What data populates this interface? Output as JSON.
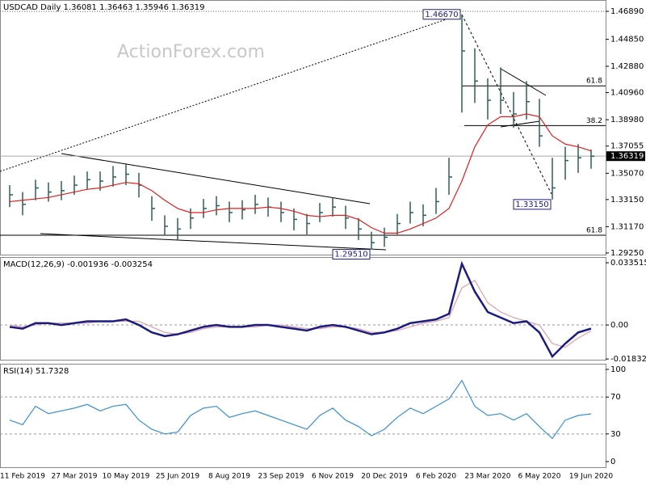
{
  "chart_data": [
    {
      "type": "ohlc",
      "title": "USDCAD Daily  1.36081  1.36463  1.35946  1.36319",
      "watermark": "ActionForex.com",
      "color": "#2d5e55",
      "high": [
        1.342,
        1.337,
        1.346,
        1.344,
        1.345,
        1.349,
        1.352,
        1.352,
        1.356,
        1.358,
        1.351,
        1.334,
        1.32,
        1.318,
        1.325,
        1.332,
        1.334,
        1.33,
        1.331,
        1.335,
        1.333,
        1.33,
        1.325,
        1.321,
        1.329,
        1.333,
        1.327,
        1.318,
        1.308,
        1.311,
        1.321,
        1.33,
        1.328,
        1.34,
        1.362,
        1.4667,
        1.442,
        1.42,
        1.428,
        1.41,
        1.418,
        1.405,
        1.362,
        1.37,
        1.372,
        1.368
      ],
      "low": [
        1.326,
        1.32,
        1.331,
        1.33,
        1.331,
        1.335,
        1.339,
        1.338,
        1.341,
        1.342,
        1.333,
        1.316,
        1.305,
        1.302,
        1.31,
        1.318,
        1.32,
        1.315,
        1.317,
        1.321,
        1.319,
        1.315,
        1.309,
        1.306,
        1.315,
        1.319,
        1.31,
        1.302,
        1.2951,
        1.297,
        1.306,
        1.314,
        1.312,
        1.321,
        1.335,
        1.395,
        1.402,
        1.39,
        1.394,
        1.384,
        1.39,
        1.37,
        1.3315,
        1.346,
        1.351,
        1.354
      ],
      "close": [
        1.335,
        1.328,
        1.34,
        1.337,
        1.338,
        1.342,
        1.346,
        1.345,
        1.348,
        1.35,
        1.342,
        1.325,
        1.312,
        1.31,
        1.318,
        1.325,
        1.327,
        1.322,
        1.324,
        1.328,
        1.326,
        1.322,
        1.317,
        1.314,
        1.322,
        1.326,
        1.318,
        1.31,
        1.3,
        1.304,
        1.314,
        1.322,
        1.32,
        1.33,
        1.348,
        1.44,
        1.418,
        1.404,
        1.404,
        1.394,
        1.403,
        1.378,
        1.34,
        1.36,
        1.362,
        1.36319
      ],
      "series": [
        {
          "color": "#e02020",
          "values": [
            1.33,
            1.331,
            1.332,
            1.333,
            1.335,
            1.337,
            1.339,
            1.34,
            1.342,
            1.344,
            1.343,
            1.338,
            1.331,
            1.325,
            1.322,
            1.322,
            1.324,
            1.325,
            1.325,
            1.325,
            1.326,
            1.325,
            1.323,
            1.32,
            1.319,
            1.32,
            1.32,
            1.317,
            1.311,
            1.307,
            1.307,
            1.31,
            1.314,
            1.318,
            1.325,
            1.345,
            1.37,
            1.386,
            1.392,
            1.392,
            1.394,
            1.392,
            1.378,
            1.372,
            1.37,
            1.367
          ]
        }
      ],
      "ylim": [
        1.2913,
        1.4772
      ],
      "yticks": [
        {
          "value": 1.2925,
          "label": "1.29250"
        },
        {
          "value": 1.3117,
          "label": "1.31170"
        },
        {
          "value": 1.3315,
          "label": "1.33150"
        },
        {
          "value": 1.3507,
          "label": "1.35070"
        },
        {
          "value": 1.37055,
          "label": "1.37055"
        },
        {
          "value": 1.3898,
          "label": "1.38980"
        },
        {
          "value": 1.4096,
          "label": "1.40960"
        },
        {
          "value": 1.4288,
          "label": "1.42880"
        },
        {
          "value": 1.4485,
          "label": "1.44850"
        },
        {
          "value": 1.4689,
          "label": "1.46890"
        }
      ],
      "reference_line": 1.4689,
      "last": {
        "value": 1.36319,
        "label": "1.36319"
      },
      "extremes": [
        {
          "value": 1.4667,
          "label": "1.46670"
        },
        {
          "value": 1.3315,
          "label": "1.33150"
        },
        {
          "value": 1.2951,
          "label": "1.29510"
        }
      ],
      "fib_levels": [
        {
          "value": 1.4145,
          "label": "61.8"
        },
        {
          "value": 1.3855,
          "label": "38.2"
        },
        {
          "value": 1.3055,
          "label": "61.8"
        }
      ]
    },
    {
      "type": "line",
      "title": "MACD(12,26,9) -0.001936 -0.003254",
      "series": [
        {
          "color": "#1c1c80",
          "values": [
            -0.001,
            -0.002,
            0.001,
            0.001,
            0.0,
            0.001,
            0.002,
            0.002,
            0.002,
            0.003,
            0.0,
            -0.004,
            -0.006,
            -0.005,
            -0.003,
            -0.001,
            0.0,
            -0.001,
            -0.001,
            0.0,
            0.0,
            -0.001,
            -0.002,
            -0.003,
            -0.001,
            0.0,
            -0.001,
            -0.003,
            -0.005,
            -0.004,
            -0.002,
            0.001,
            0.002,
            0.003,
            0.006,
            0.033,
            0.018,
            0.007,
            0.004,
            0.001,
            0.002,
            -0.004,
            -0.017,
            -0.01,
            -0.004,
            -0.001936
          ]
        },
        {
          "color": "#d9a0a8",
          "values": [
            0.0,
            -0.001,
            0.0,
            0.001,
            0.001,
            0.001,
            0.001,
            0.002,
            0.002,
            0.002,
            0.002,
            -0.001,
            -0.004,
            -0.005,
            -0.004,
            -0.002,
            -0.001,
            -0.001,
            -0.001,
            -0.001,
            0.0,
            0.0,
            -0.001,
            -0.002,
            -0.002,
            -0.001,
            -0.001,
            -0.002,
            -0.004,
            -0.004,
            -0.003,
            -0.001,
            0.001,
            0.002,
            0.004,
            0.02,
            0.024,
            0.012,
            0.007,
            0.004,
            0.002,
            0.0,
            -0.01,
            -0.012,
            -0.007,
            -0.003254
          ]
        }
      ],
      "ylim": [
        -0.0187,
        0.0366
      ],
      "yticks": [
        {
          "value": 0.033515,
          "label": "0.033515"
        },
        {
          "value": 0,
          "label": "0.00"
        },
        {
          "value": -0.018324,
          "label": "-0.018324"
        }
      ],
      "levels": [
        0
      ]
    },
    {
      "type": "line",
      "title": "RSI(14) 51.7328",
      "categories": [
        null,
        "11 Feb 2019",
        null,
        null,
        null,
        "27 Mar 2019",
        null,
        null,
        null,
        "10 May 2019",
        null,
        null,
        null,
        "25 Jun 2019",
        null,
        null,
        null,
        "8 Aug 2019",
        null,
        null,
        null,
        "23 Sep 2019",
        null,
        null,
        null,
        "6 Nov 2019",
        null,
        null,
        null,
        "20 Dec 2019",
        null,
        null,
        null,
        "6 Feb 2020",
        null,
        null,
        null,
        "23 Mar 2020",
        null,
        null,
        null,
        "6 May 2020",
        null,
        null,
        null,
        "19 Jun 2020"
      ],
      "series": [
        {
          "color": "#3a8fd0",
          "values": [
            45,
            40,
            60,
            52,
            55,
            58,
            62,
            55,
            60,
            62,
            45,
            35,
            30,
            32,
            50,
            58,
            60,
            48,
            52,
            55,
            50,
            45,
            40,
            35,
            50,
            58,
            45,
            38,
            28,
            35,
            48,
            58,
            52,
            60,
            68,
            88,
            60,
            50,
            52,
            45,
            52,
            38,
            25,
            45,
            50,
            51.7328
          ]
        }
      ],
      "ylim": [
        -6.1,
        106.1
      ],
      "yticks": [
        100,
        70,
        30,
        0
      ],
      "levels": [
        70,
        30
      ]
    }
  ]
}
